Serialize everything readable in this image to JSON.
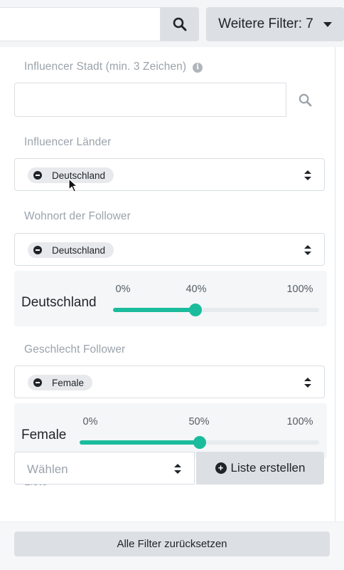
{
  "toolbar": {
    "search_icon": "search-icon",
    "more_filters_label": "Weitere Filter: 7"
  },
  "filters": {
    "city": {
      "label": "Influencer Stadt (min. 3 Zeichen)",
      "info_icon": "info-icon",
      "value": ""
    },
    "countries": {
      "label": "Influencer Länder",
      "chip": "Deutschland"
    },
    "follower_location": {
      "label": "Wohnort der Follower",
      "chip": "Deutschland",
      "slider": {
        "title": "Deutschland",
        "ticks": [
          "0%",
          "40%",
          "100%"
        ],
        "value_percent": 40
      }
    },
    "follower_gender": {
      "label": "Geschlecht Follower",
      "chip": "Female",
      "slider": {
        "title": "Female",
        "ticks": [
          "0%",
          "50%",
          "100%"
        ],
        "value_percent": 50
      }
    },
    "list": {
      "label": "Liste",
      "placeholder": "Wählen",
      "create_button": "Liste erstellen"
    }
  },
  "footer": {
    "reset_label": "Alle Filter zurücksetzen"
  },
  "colors": {
    "accent": "#1abc9c",
    "button_bg": "#dcdfe3",
    "label_gray": "#9ba3ab"
  }
}
